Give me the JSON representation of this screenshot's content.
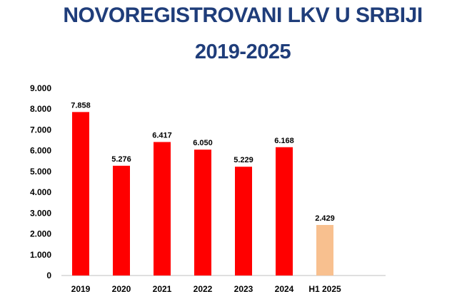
{
  "chart_data": {
    "type": "bar",
    "title": "NOVOREGISTROVANI LKV U SRBIJI",
    "subtitle": "2019-2025",
    "categories": [
      "2019",
      "2020",
      "2021",
      "2022",
      "2023",
      "2024",
      "H1 2025"
    ],
    "values": [
      7858,
      5276,
      6417,
      6050,
      5229,
      6168,
      2429
    ],
    "data_labels": [
      "7.858",
      "5.276",
      "6.417",
      "6.050",
      "5.229",
      "6.168",
      "2.429"
    ],
    "y_ticks": [
      "0",
      "1.000",
      "2.000",
      "3.000",
      "4.000",
      "5.000",
      "6.000",
      "7.000",
      "8.000",
      "9.000"
    ],
    "ylim": [
      0,
      9000
    ],
    "grid": false,
    "legend": "none",
    "colors": {
      "bar": "#ff0000",
      "bar_highlight": "#f8c08f",
      "title": "#1f3d7a",
      "axis": "#bfbfbf"
    },
    "highlight_index": 6
  }
}
